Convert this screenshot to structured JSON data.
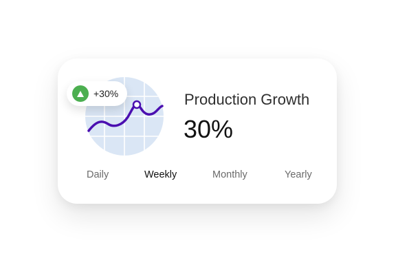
{
  "card": {
    "title": "Production Growth",
    "value": "30%"
  },
  "badge": {
    "text": "+30%",
    "icon": "triangle-up-icon",
    "color": "#4caf50"
  },
  "chart": {
    "circle_color": "#dae6f5",
    "grid_color": "#ffffff",
    "line_color": "#4b0fb0"
  },
  "tabs": [
    {
      "label": "Daily",
      "active": false
    },
    {
      "label": "Weekly",
      "active": true
    },
    {
      "label": "Monthly",
      "active": false
    },
    {
      "label": "Yearly",
      "active": false
    }
  ]
}
